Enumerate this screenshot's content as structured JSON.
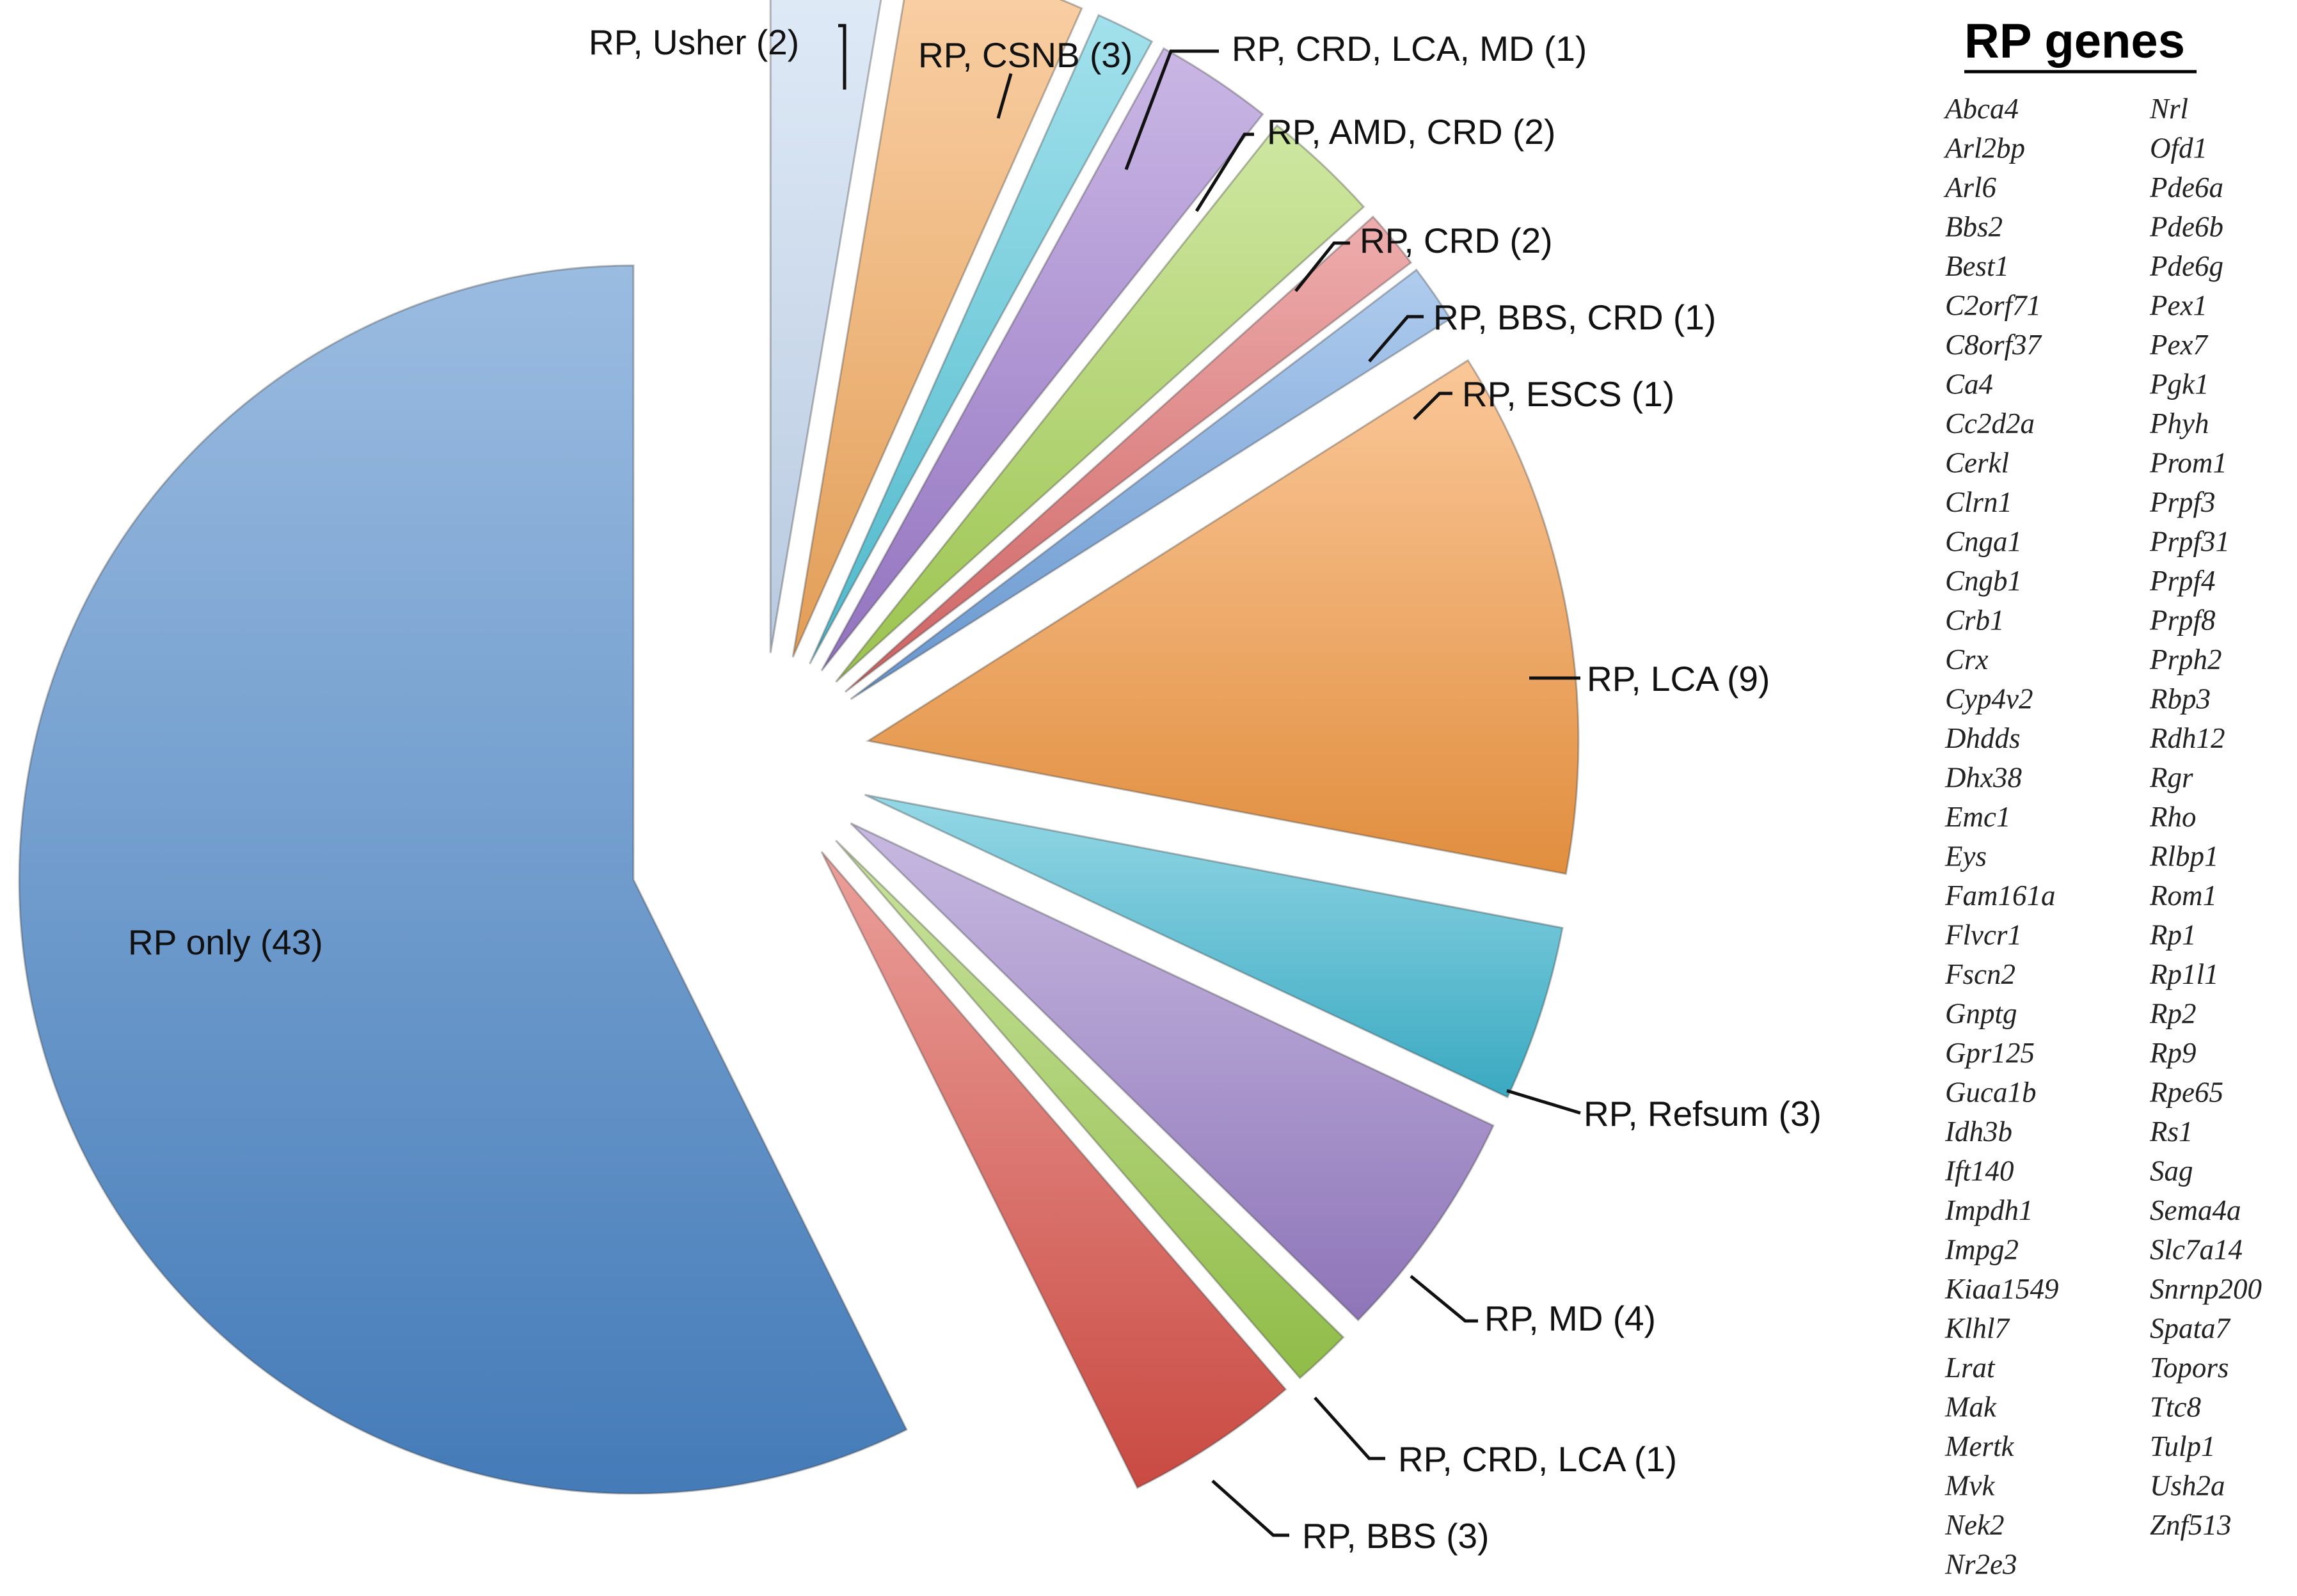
{
  "chart_data": {
    "type": "pie",
    "exploded": true,
    "slices": [
      {
        "label": "RP only (43)",
        "value": 43,
        "color": "#4a86c8"
      },
      {
        "label": "RP, LCA (9)",
        "value": 9,
        "color": "#f59a43"
      },
      {
        "label": "RP, Refsum (3)",
        "value": 3,
        "color": "#3fb8d2"
      },
      {
        "label": "RP, MD (4)",
        "value": 4,
        "color": "#9a7fc8"
      },
      {
        "label": "RP, CRD, LCA (1)",
        "value": 1,
        "color": "#9ccc4e"
      },
      {
        "label": "RP, BBS (3)",
        "value": 3,
        "color": "#da5048"
      },
      {
        "label": "RP, Usher (2)",
        "value": 2,
        "color": "#c9dcf3"
      },
      {
        "label": "RP, CSNB (3)",
        "value": 3,
        "color": "#f6ac5f"
      },
      {
        "label": "RP, CRD, LCA, MD (1)",
        "value": 1,
        "color": "#55c9dd"
      },
      {
        "label": "RP, AMD, CRD (2)",
        "value": 2,
        "color": "#9f7cd0"
      },
      {
        "label": "RP, CRD (2)",
        "value": 2,
        "color": "#a8d455"
      },
      {
        "label": "RP, BBS, CRD (1)",
        "value": 1,
        "color": "#e06a6a"
      },
      {
        "label": "RP, ESCS (1)",
        "value": 1,
        "color": "#6fa3e0"
      }
    ]
  },
  "gene_list": {
    "title": "RP genes",
    "column_1": [
      "Abca4",
      "Arl2bp",
      "Arl6",
      "Bbs2",
      "Best1",
      "C2orf71",
      "C8orf37",
      "Ca4",
      "Cc2d2a",
      "Cerkl",
      "Clrn1",
      "Cnga1",
      "Cngb1",
      "Crb1",
      "Crx",
      "Cyp4v2",
      "Dhdds",
      "Dhx38",
      "Emc1",
      "Eys",
      "Fam161a",
      "Flvcr1",
      "Fscn2",
      "Gnptg",
      "Gpr125",
      "Guca1b",
      "Idh3b",
      "Ift140",
      "Impdh1",
      "Impg2",
      "Kiaa1549",
      "Klhl7",
      "Lrat",
      "Mak",
      "Mertk",
      "Mvk",
      "Nek2",
      "Nr2e3"
    ],
    "column_2": [
      "Nrl",
      "Ofd1",
      "Pde6a",
      "Pde6b",
      "Pde6g",
      "Pex1",
      "Pex7",
      "Pgk1",
      "Phyh",
      "Prom1",
      "Prpf3",
      "Prpf31",
      "Prpf4",
      "Prpf8",
      "Prph2",
      "Rbp3",
      "Rdh12",
      "Rgr",
      "Rho",
      "Rlbp1",
      "Rom1",
      "Rp1",
      "Rp1l1",
      "Rp2",
      "Rp9",
      "Rpe65",
      "Rs1",
      "Sag",
      "Sema4a",
      "Slc7a14",
      "Snrnp200",
      "Spata7",
      "Topors",
      "Ttc8",
      "Tulp1",
      "Ush2a",
      "Znf513"
    ]
  }
}
